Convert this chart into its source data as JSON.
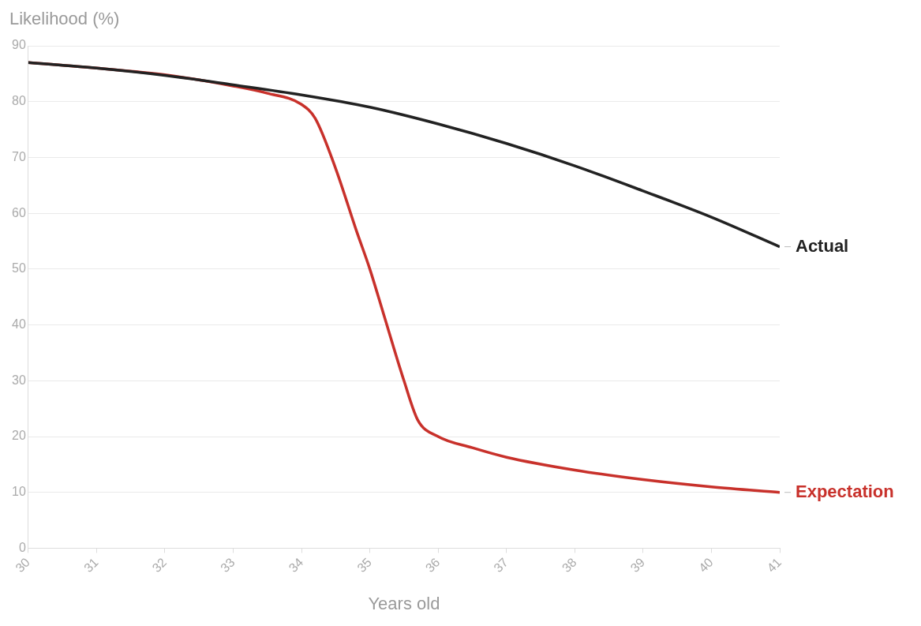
{
  "chart_data": {
    "type": "line",
    "ylabel": "Likelihood (%)",
    "xlabel": "Years old",
    "xlim": [
      30,
      41
    ],
    "xticks": [
      30,
      31,
      32,
      33,
      34,
      35,
      36,
      37,
      38,
      39,
      40,
      41
    ],
    "ylim": [
      0,
      90
    ],
    "yticks": [
      0,
      10,
      20,
      30,
      40,
      50,
      60,
      70,
      80,
      90
    ],
    "grid": "y",
    "legend": false,
    "marker": "none",
    "line_style": "solid",
    "series": [
      {
        "name": "Actual",
        "color": "#222222",
        "x": [
          30,
          31,
          32,
          33,
          34,
          35,
          36,
          37,
          38,
          39,
          40,
          41
        ],
        "values": [
          87,
          86,
          84.7,
          83,
          81.2,
          79,
          76,
          72.5,
          68.5,
          64,
          59.3,
          54
        ]
      },
      {
        "name": "Expectation",
        "color": "#c8312b",
        "x": [
          30,
          31,
          32,
          33,
          33.5,
          34,
          34.2,
          34.5,
          34.8,
          35,
          35.2,
          35.5,
          35.7,
          36,
          36.5,
          37,
          38,
          39,
          40,
          41
        ],
        "values": [
          87,
          86,
          84.8,
          82.8,
          81.5,
          79.5,
          77,
          68,
          57,
          50,
          42,
          30,
          23,
          20,
          18,
          16.3,
          14,
          12.3,
          11,
          10
        ]
      }
    ]
  }
}
